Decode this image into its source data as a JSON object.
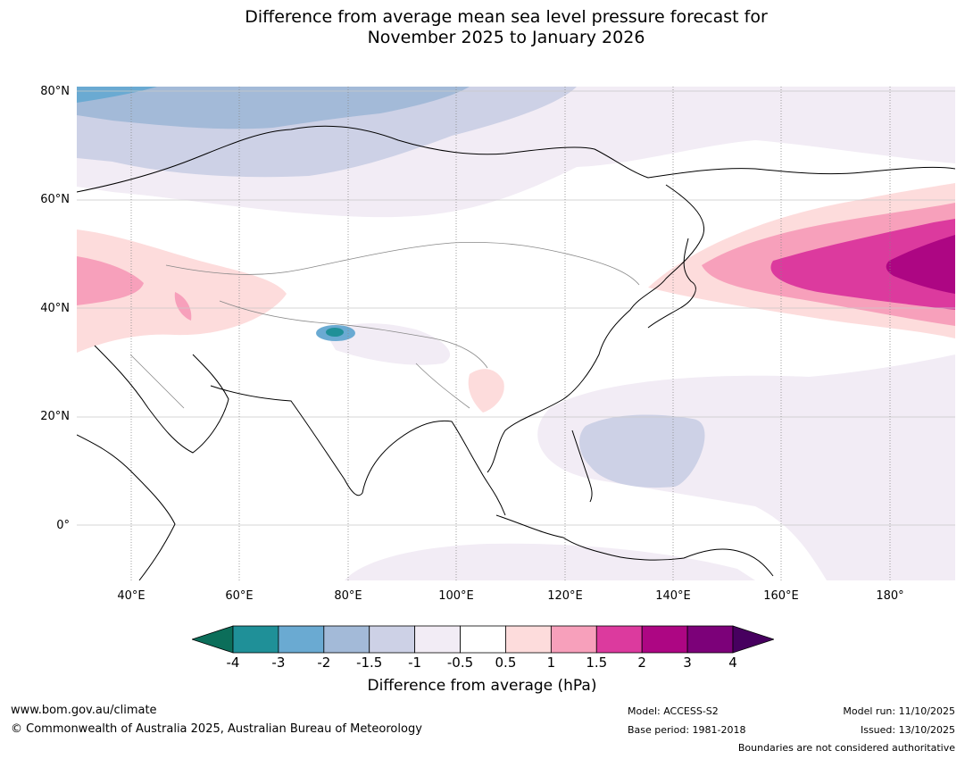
{
  "title": {
    "line1": "Difference from average mean sea level pressure forecast for",
    "line2": "November 2025 to January 2026"
  },
  "map": {
    "lat_labels": [
      "80°N",
      "60°N",
      "40°N",
      "20°N",
      "0°"
    ],
    "lon_labels": [
      "40°E",
      "60°E",
      "80°E",
      "100°E",
      "120°E",
      "140°E",
      "160°E",
      "180°"
    ],
    "extent": {
      "lon_min": 30,
      "lon_max": 192,
      "lat_min": -10,
      "lat_max": 81
    }
  },
  "colorbar": {
    "label": "Difference from average (hPa)",
    "ticks": [
      "-4",
      "-3",
      "-2",
      "-1.5",
      "-1",
      "-0.5",
      "0.5",
      "1",
      "1.5",
      "2",
      "3",
      "4"
    ],
    "colors": {
      "below_min": "#0c6e5a",
      "bins": [
        "#1f9098",
        "#6aaad2",
        "#a3bad8",
        "#cdd1e6",
        "#f2ecf5",
        "#ffffff",
        "#fddcdc",
        "#f7a0bb",
        "#dc3a9e",
        "#ad0683",
        "#7c0179"
      ],
      "above_max": "#47005f"
    }
  },
  "footer": {
    "website": "www.bom.gov.au/climate",
    "copyright": "© Commonwealth of Australia 2025, Australian Bureau of Meteorology",
    "model": "Model: ACCESS-S2",
    "base_period": "Base period: 1981-2018",
    "model_run": "Model run: 11/10/2025",
    "issued": "Issued: 13/10/2025",
    "disclaimer": "Boundaries are not considered authoritative"
  }
}
